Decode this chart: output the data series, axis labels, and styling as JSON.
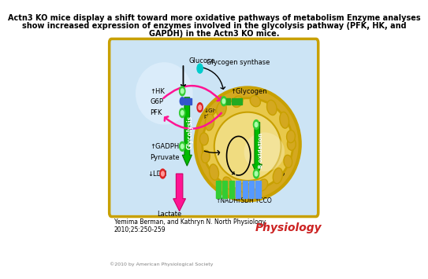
{
  "title_line1": "Actn3 KO mice display a shift toward more oxidative pathways of metabolism Enzyme analyses",
  "title_line2": "show increased expression of enzymes involved in the glycolysis pathway (PFK, HK, and",
  "title_line3": "GAPDH) in the Actn3 KO mice.",
  "title_fontsize": 7.0,
  "author_text": "Yemima Berman, and Kathryn N. North Physiology\n2010;25:250-259",
  "author_fontsize": 5.5,
  "journal_text": "Physiology",
  "journal_fontsize": 10,
  "copyright_text": "©2010 by American Physiological Society",
  "copyright_fontsize": 4.5,
  "bg_color": "#ffffff",
  "cell_border_color": "#c8a000",
  "cell_fill": "#cce4f5",
  "mito_outer_color": "#c8a000",
  "mito_outer_fill": "#d4a820",
  "mito_inner_fill": "#e8c84a",
  "mito_matrix_fill": "#f0dc80",
  "green_arrow": "#00bb00",
  "green_dark": "#007700",
  "pink_arrow": "#ff1493",
  "red_dot": "#dd2222",
  "green_dot": "#33cc33",
  "cyan_dot": "#00cccc",
  "blue_rect": "#3355cc",
  "green_rect": "#22aa22"
}
